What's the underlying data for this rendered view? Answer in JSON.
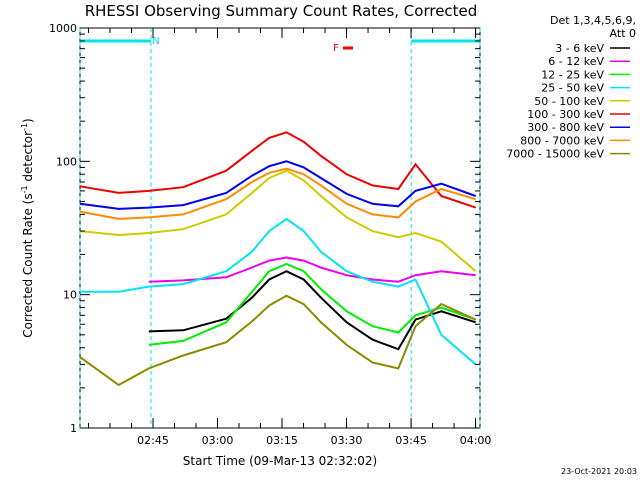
{
  "chart_data": {
    "type": "line",
    "title": "RHESSI Observing Summary Count Rates, Corrected",
    "xlabel": "Start Time (09-Mar-13 02:32:02)",
    "ylabel_prefix": "Corrected Count Rate (s",
    "ylabel_sup1": "-1",
    "ylabel_mid": " detector",
    "ylabel_sup2": "-1",
    "ylabel_suffix": ")",
    "x_unit": "minutes after 02:32:02 (time of day)",
    "xlim_min": [
      -4.0,
      89.0
    ],
    "ylog": true,
    "ylim": [
      1,
      1000
    ],
    "y_tick_labels": [
      "1",
      "10",
      "100",
      "1000"
    ],
    "y_tick_values": [
      1,
      10,
      100,
      1000
    ],
    "x_tick_labels": [
      "02:45",
      "03:00",
      "03:15",
      "03:30",
      "03:45",
      "04:00"
    ],
    "x_tick_minutes": [
      12.97,
      27.97,
      42.97,
      57.97,
      72.97,
      87.97
    ],
    "legend_header_1": "Det 1,3,4,5,6,9,",
    "legend_header_2": "Att 0",
    "flag_markers": [
      {
        "label": "N",
        "color": "#00e5ee"
      },
      {
        "label": "F",
        "color": "#ee0000"
      }
    ],
    "night_intervals_min": [
      [
        -4.0,
        12.5
      ],
      [
        73.0,
        89.0
      ]
    ],
    "series": [
      {
        "name": "3 - 6 keV",
        "color": "#000000",
        "x": [
          12,
          20,
          30,
          36,
          40,
          44,
          48,
          52,
          58,
          64,
          70,
          74,
          80,
          88
        ],
        "y": [
          5.3,
          5.4,
          6.6,
          9.5,
          13,
          15,
          13,
          9.5,
          6.2,
          4.6,
          3.9,
          6.5,
          7.5,
          6.2
        ]
      },
      {
        "name": "6 - 12 keV",
        "color": "#ee00ee",
        "x": [
          12,
          20,
          30,
          36,
          40,
          44,
          48,
          52,
          58,
          64,
          70,
          74,
          80,
          88
        ],
        "y": [
          12.5,
          12.8,
          13.5,
          16,
          18,
          19,
          18,
          16,
          14,
          13,
          12.5,
          14,
          15,
          14
        ]
      },
      {
        "name": "12 - 25 keV",
        "color": "#00ee00",
        "x": [
          12,
          20,
          30,
          36,
          40,
          44,
          48,
          52,
          58,
          64,
          70,
          74,
          80,
          88
        ],
        "y": [
          4.2,
          4.5,
          6.2,
          10.5,
          15,
          17,
          15,
          11,
          7.5,
          5.8,
          5.2,
          7,
          8,
          6.5
        ]
      },
      {
        "name": "25 - 50 keV",
        "color": "#00e5ee",
        "x": [
          -4,
          5,
          12,
          20,
          30,
          36,
          40,
          44,
          48,
          52,
          58,
          64,
          70,
          74,
          80,
          88
        ],
        "y": [
          10.5,
          10.5,
          11.5,
          12,
          15,
          21,
          30,
          37,
          30,
          21,
          15,
          12.5,
          11.5,
          13,
          5,
          3
        ]
      },
      {
        "name": "50 - 100 keV",
        "color": "#cccc00",
        "x": [
          -4,
          5,
          12,
          20,
          30,
          36,
          40,
          44,
          48,
          52,
          58,
          64,
          70,
          74,
          80,
          88
        ],
        "y": [
          30,
          28,
          29,
          31,
          40,
          58,
          75,
          85,
          72,
          55,
          38,
          30,
          27,
          29,
          25,
          15
        ]
      },
      {
        "name": "100 - 300 keV",
        "color": "#ee0000",
        "x": [
          -4,
          5,
          12,
          20,
          30,
          36,
          40,
          44,
          48,
          52,
          58,
          64,
          70,
          74,
          80,
          88
        ],
        "y": [
          65,
          58,
          60,
          64,
          85,
          120,
          150,
          165,
          140,
          110,
          80,
          66,
          62,
          95,
          55,
          45
        ]
      },
      {
        "name": "300 - 800 keV",
        "color": "#0000ee",
        "x": [
          -4,
          5,
          12,
          20,
          30,
          36,
          40,
          44,
          48,
          52,
          58,
          64,
          70,
          74,
          80,
          88
        ],
        "y": [
          48,
          44,
          45,
          47,
          58,
          78,
          92,
          100,
          90,
          75,
          57,
          48,
          46,
          60,
          68,
          55
        ]
      },
      {
        "name": "800 - 7000 keV",
        "color": "#ff8c00",
        "x": [
          -4,
          5,
          12,
          20,
          30,
          36,
          40,
          44,
          48,
          52,
          58,
          64,
          70,
          74,
          80,
          88
        ],
        "y": [
          42,
          37,
          38,
          40,
          52,
          70,
          82,
          88,
          80,
          66,
          48,
          40,
          38,
          50,
          62,
          52
        ]
      },
      {
        "name": "7000 - 15000 keV",
        "color": "#8b8b00",
        "x": [
          -4,
          5,
          12,
          20,
          30,
          36,
          40,
          44,
          48,
          52,
          58,
          64,
          70,
          74,
          80,
          88
        ],
        "y": [
          3.4,
          2.1,
          2.8,
          3.5,
          4.4,
          6.3,
          8.3,
          9.8,
          8.5,
          6.2,
          4.2,
          3.1,
          2.8,
          5.8,
          8.5,
          6.5
        ]
      }
    ],
    "grid": false,
    "legend_placement": "right",
    "timestamp": "23-Oct-2021 20:03"
  }
}
